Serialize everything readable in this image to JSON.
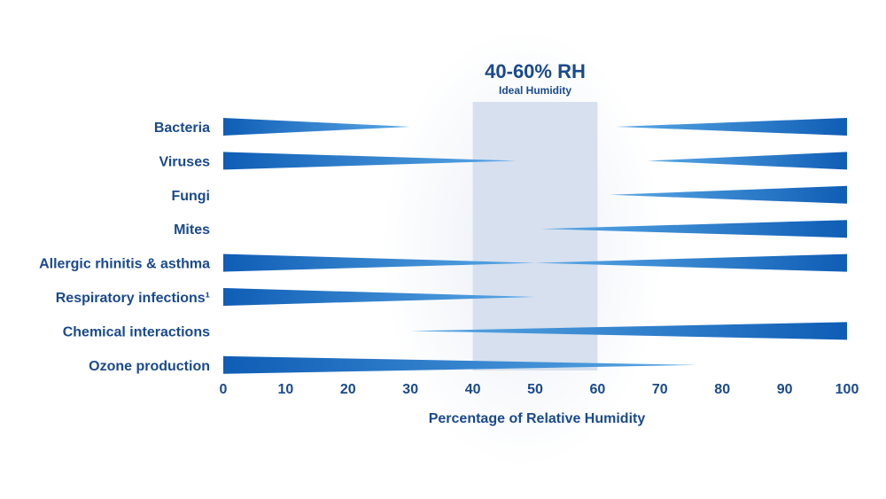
{
  "chart_data": {
    "type": "bar",
    "title": "40-60% RH",
    "subtitle": "Ideal Humidity",
    "xlabel": "Percentage of Relative Humidity",
    "ylabel": "",
    "xlim": [
      0,
      100
    ],
    "xticks": [
      0,
      10,
      20,
      30,
      40,
      50,
      60,
      70,
      80,
      90,
      100
    ],
    "ideal_zone": [
      40,
      60
    ],
    "colors": {
      "bar_dark": "#0f5db5",
      "bar_light": "#5aa9e6",
      "zone": "#d6e0ee",
      "text": "#1a4a8c"
    },
    "categories": [
      "Bacteria",
      "Viruses",
      "Fungi",
      "Mites",
      "Allergic rhinitis & asthma",
      "Respiratory infections¹",
      "Chemical interactions",
      "Ozone production"
    ],
    "series": [
      {
        "name": "Bacteria",
        "wedges": [
          {
            "from": 0,
            "to": 30
          },
          {
            "from": 100,
            "to": 63
          }
        ]
      },
      {
        "name": "Viruses",
        "wedges": [
          {
            "from": 0,
            "to": 47
          },
          {
            "from": 100,
            "to": 68
          }
        ]
      },
      {
        "name": "Fungi",
        "wedges": [
          {
            "from": 100,
            "to": 62
          }
        ]
      },
      {
        "name": "Mites",
        "wedges": [
          {
            "from": 100,
            "to": 51
          }
        ]
      },
      {
        "name": "Allergic rhinitis & asthma",
        "wedges": [
          {
            "from": 0,
            "to": 50
          },
          {
            "from": 100,
            "to": 50
          }
        ]
      },
      {
        "name": "Respiratory infections¹",
        "wedges": [
          {
            "from": 0,
            "to": 50
          }
        ]
      },
      {
        "name": "Chemical interactions",
        "wedges": [
          {
            "from": 100,
            "to": 30
          }
        ]
      },
      {
        "name": "Ozone production",
        "wedges": [
          {
            "from": 0,
            "to": 76
          }
        ]
      }
    ]
  }
}
